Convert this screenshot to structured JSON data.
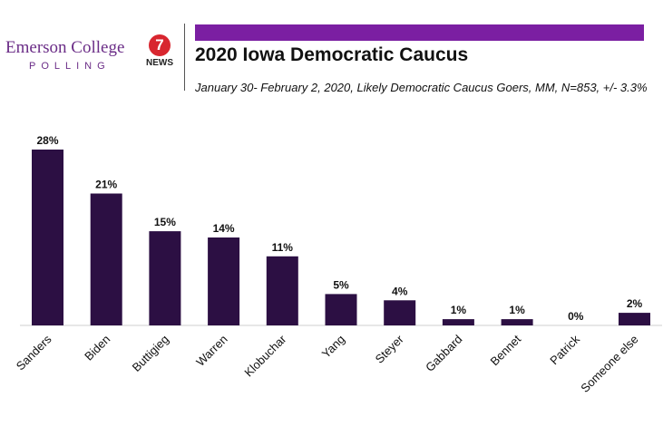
{
  "header": {
    "logo_name": "Emerson College",
    "logo_sub": "POLLING",
    "news_number": "7",
    "news_label": "NEWS",
    "title": "2020 Iowa Democratic Caucus",
    "subtitle": "January 30- February 2, 2020, Likely Democratic Caucus Goers, MM,  N=853, +/-  3.3%",
    "colors": {
      "brand_purple": "#6b2d87",
      "accent_bar": "#7b1fa2",
      "news_red": "#d8262f"
    }
  },
  "chart_data": {
    "type": "bar",
    "categories": [
      "Sanders",
      "Biden",
      "Buttigieg",
      "Warren",
      "Klobuchar",
      "Yang",
      "Steyer",
      "Gabbard",
      "Bennet",
      "Patrick",
      "Someone else"
    ],
    "values": [
      28,
      21,
      15,
      14,
      11,
      5,
      4,
      1,
      1,
      0,
      2
    ],
    "data_labels": [
      "28%",
      "21%",
      "15%",
      "14%",
      "11%",
      "5%",
      "4%",
      "1%",
      "1%",
      "0%",
      "2%"
    ],
    "ylim": [
      0,
      28
    ],
    "grid": false,
    "legend": "none",
    "bar_color": "#2c0f43",
    "x_tick_rotation": "-45"
  }
}
